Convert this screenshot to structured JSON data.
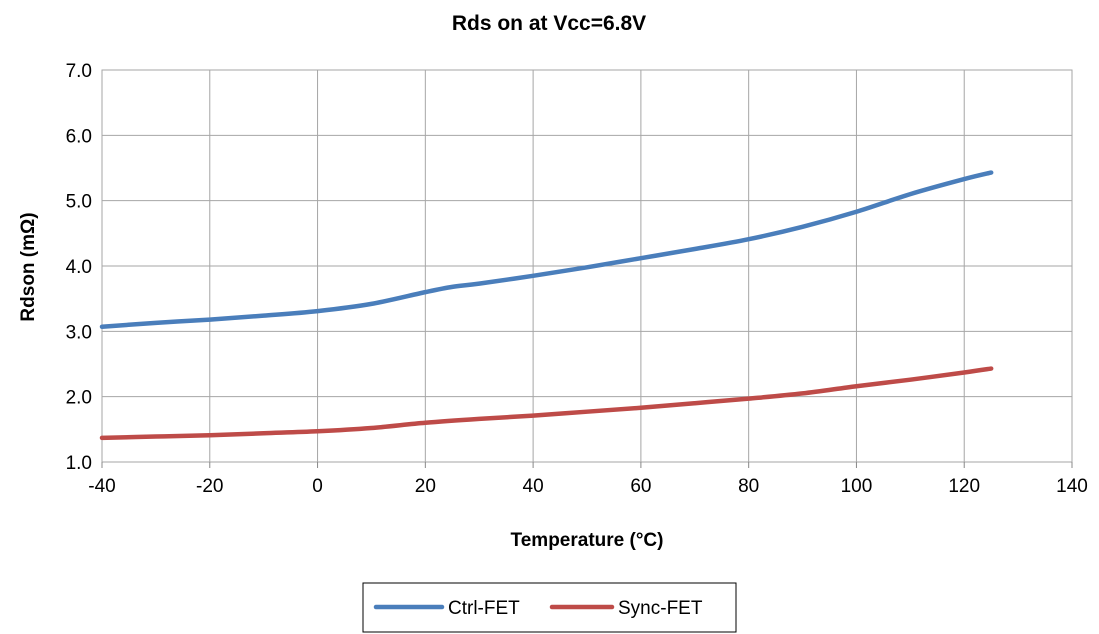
{
  "chart_data": {
    "type": "line",
    "title": "Rds on at Vcc=6.8V",
    "xlabel": "Temperature (°C)",
    "ylabel": "Rdson (mΩ)",
    "xlim": [
      -40,
      140
    ],
    "ylim": [
      1.0,
      7.0
    ],
    "x_ticks": [
      "-40",
      "-20",
      "0",
      "20",
      "40",
      "60",
      "80",
      "100",
      "120",
      "140"
    ],
    "y_ticks": [
      "1.0",
      "2.0",
      "3.0",
      "4.0",
      "5.0",
      "6.0",
      "7.0"
    ],
    "grid": true,
    "legend_position": "bottom",
    "series": [
      {
        "name": "Ctrl-FET",
        "color": "#4a7ebb",
        "x": [
          -40,
          -30,
          -20,
          -10,
          0,
          10,
          20,
          25,
          30,
          40,
          50,
          60,
          70,
          80,
          90,
          100,
          110,
          120,
          125
        ],
        "y": [
          3.07,
          3.13,
          3.18,
          3.24,
          3.31,
          3.42,
          3.6,
          3.68,
          3.73,
          3.85,
          3.98,
          4.12,
          4.26,
          4.41,
          4.6,
          4.83,
          5.1,
          5.33,
          5.43
        ]
      },
      {
        "name": "Sync-FET",
        "color": "#be4b48",
        "x": [
          -40,
          -30,
          -20,
          -10,
          0,
          10,
          20,
          30,
          40,
          50,
          60,
          70,
          80,
          90,
          100,
          110,
          120,
          125
        ],
        "y": [
          1.37,
          1.39,
          1.41,
          1.44,
          1.47,
          1.52,
          1.6,
          1.66,
          1.71,
          1.77,
          1.83,
          1.9,
          1.97,
          2.05,
          2.16,
          2.26,
          2.37,
          2.43
        ]
      }
    ]
  }
}
